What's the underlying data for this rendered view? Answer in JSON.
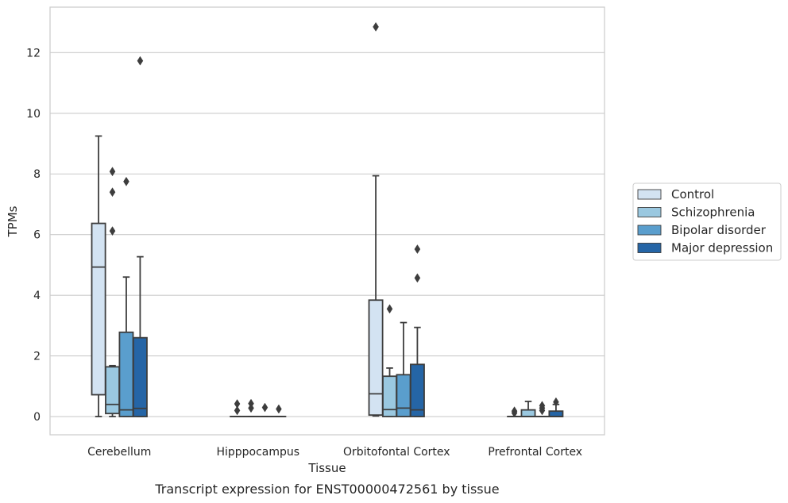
{
  "chart_data": {
    "type": "box",
    "title": "",
    "caption": "Transcript expression for ENST00000472561 by tissue",
    "xlabel": "Tissue",
    "ylabel": "TPMs",
    "ylim": [
      -0.6,
      13.5
    ],
    "yticks": [
      0,
      2,
      4,
      6,
      8,
      10,
      12
    ],
    "grid": "horizontal",
    "legend_position": "right",
    "categories": [
      "Cerebellum",
      "Hipppocampus",
      "Orbitofontal Cortex",
      "Prefrontal Cortex"
    ],
    "series": [
      {
        "name": "Control",
        "color": "#d3e3f2",
        "boxes": [
          {
            "whisker_low": 0.0,
            "q1": 0.72,
            "median": 4.93,
            "q3": 6.37,
            "whisker_high": 9.25,
            "outliers": []
          },
          {
            "whisker_low": 0.0,
            "q1": 0.0,
            "median": 0.0,
            "q3": 0.0,
            "whisker_high": 0.0,
            "outliers": [
              0.2,
              0.42
            ]
          },
          {
            "whisker_low": 0.02,
            "q1": 0.05,
            "median": 0.75,
            "q3": 3.84,
            "whisker_high": 7.94,
            "outliers": [
              12.85
            ]
          },
          {
            "whisker_low": 0.0,
            "q1": 0.0,
            "median": 0.0,
            "q3": 0.0,
            "whisker_high": 0.0,
            "outliers": [
              0.12,
              0.18
            ]
          }
        ]
      },
      {
        "name": "Schizophrenia",
        "color": "#9ac8e0",
        "boxes": [
          {
            "whisker_low": 0.0,
            "q1": 0.1,
            "median": 0.4,
            "q3": 1.64,
            "whisker_high": 1.68,
            "outliers": [
              6.12,
              7.4,
              8.08
            ]
          },
          {
            "whisker_low": 0.0,
            "q1": 0.0,
            "median": 0.0,
            "q3": 0.0,
            "whisker_high": 0.0,
            "outliers": [
              0.28,
              0.43
            ]
          },
          {
            "whisker_low": 0.0,
            "q1": 0.0,
            "median": 0.23,
            "q3": 1.33,
            "whisker_high": 1.6,
            "outliers": [
              3.55
            ]
          },
          {
            "whisker_low": 0.0,
            "q1": 0.0,
            "median": 0.0,
            "q3": 0.22,
            "whisker_high": 0.5,
            "outliers": []
          }
        ]
      },
      {
        "name": "Bipolar disorder",
        "color": "#5a9ecd",
        "boxes": [
          {
            "whisker_low": 0.0,
            "q1": 0.0,
            "median": 0.22,
            "q3": 2.78,
            "whisker_high": 4.6,
            "outliers": [
              7.75
            ]
          },
          {
            "whisker_low": 0.0,
            "q1": 0.0,
            "median": 0.0,
            "q3": 0.0,
            "whisker_high": 0.0,
            "outliers": [
              0.3
            ]
          },
          {
            "whisker_low": 0.0,
            "q1": 0.0,
            "median": 0.28,
            "q3": 1.38,
            "whisker_high": 3.1,
            "outliers": []
          },
          {
            "whisker_low": 0.0,
            "q1": 0.0,
            "median": 0.0,
            "q3": 0.0,
            "whisker_high": 0.0,
            "outliers": [
              0.2,
              0.28,
              0.36
            ]
          }
        ]
      },
      {
        "name": "Major depression",
        "color": "#2565a6",
        "boxes": [
          {
            "whisker_low": 0.0,
            "q1": 0.0,
            "median": 0.27,
            "q3": 2.6,
            "whisker_high": 5.27,
            "outliers": [
              11.73
            ]
          },
          {
            "whisker_low": 0.0,
            "q1": 0.0,
            "median": 0.0,
            "q3": 0.0,
            "whisker_high": 0.0,
            "outliers": [
              0.25
            ]
          },
          {
            "whisker_low": 0.0,
            "q1": 0.0,
            "median": 0.22,
            "q3": 1.72,
            "whisker_high": 2.94,
            "outliers": [
              4.57,
              5.52
            ]
          },
          {
            "whisker_low": 0.0,
            "q1": 0.0,
            "median": 0.0,
            "q3": 0.18,
            "whisker_high": 0.4,
            "outliers": [
              0.48
            ]
          }
        ]
      }
    ]
  }
}
